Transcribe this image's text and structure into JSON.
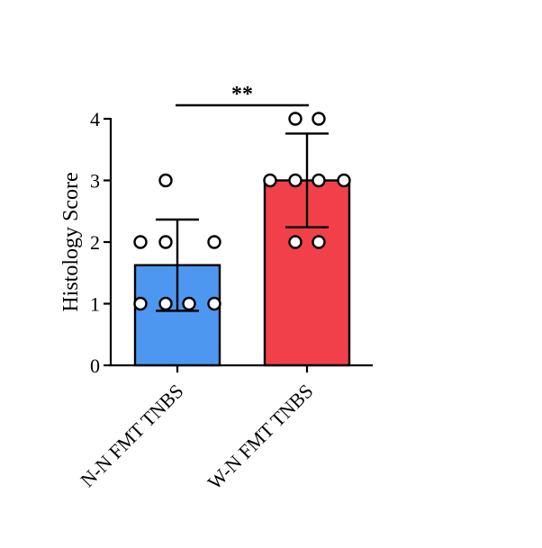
{
  "chart_data": {
    "type": "bar",
    "title": "",
    "xlabel": "",
    "ylabel": "Histology Score",
    "ylim": [
      0,
      4
    ],
    "yticks": [
      0,
      1,
      2,
      3,
      4
    ],
    "categories": [
      "N-N FMT TNBS",
      "W-N FMT TNBS"
    ],
    "values": [
      1.625,
      3.0
    ],
    "error": [
      0.74,
      0.76
    ],
    "colors": [
      "#4d97f0",
      "#f2404a"
    ],
    "points": [
      [
        1,
        1,
        1,
        1,
        2,
        2,
        2,
        3
      ],
      [
        2,
        2,
        3,
        3,
        3,
        3,
        4,
        4
      ]
    ],
    "significance": {
      "between": [
        0,
        1
      ],
      "label": "**"
    },
    "grid": false,
    "legend": "none"
  }
}
